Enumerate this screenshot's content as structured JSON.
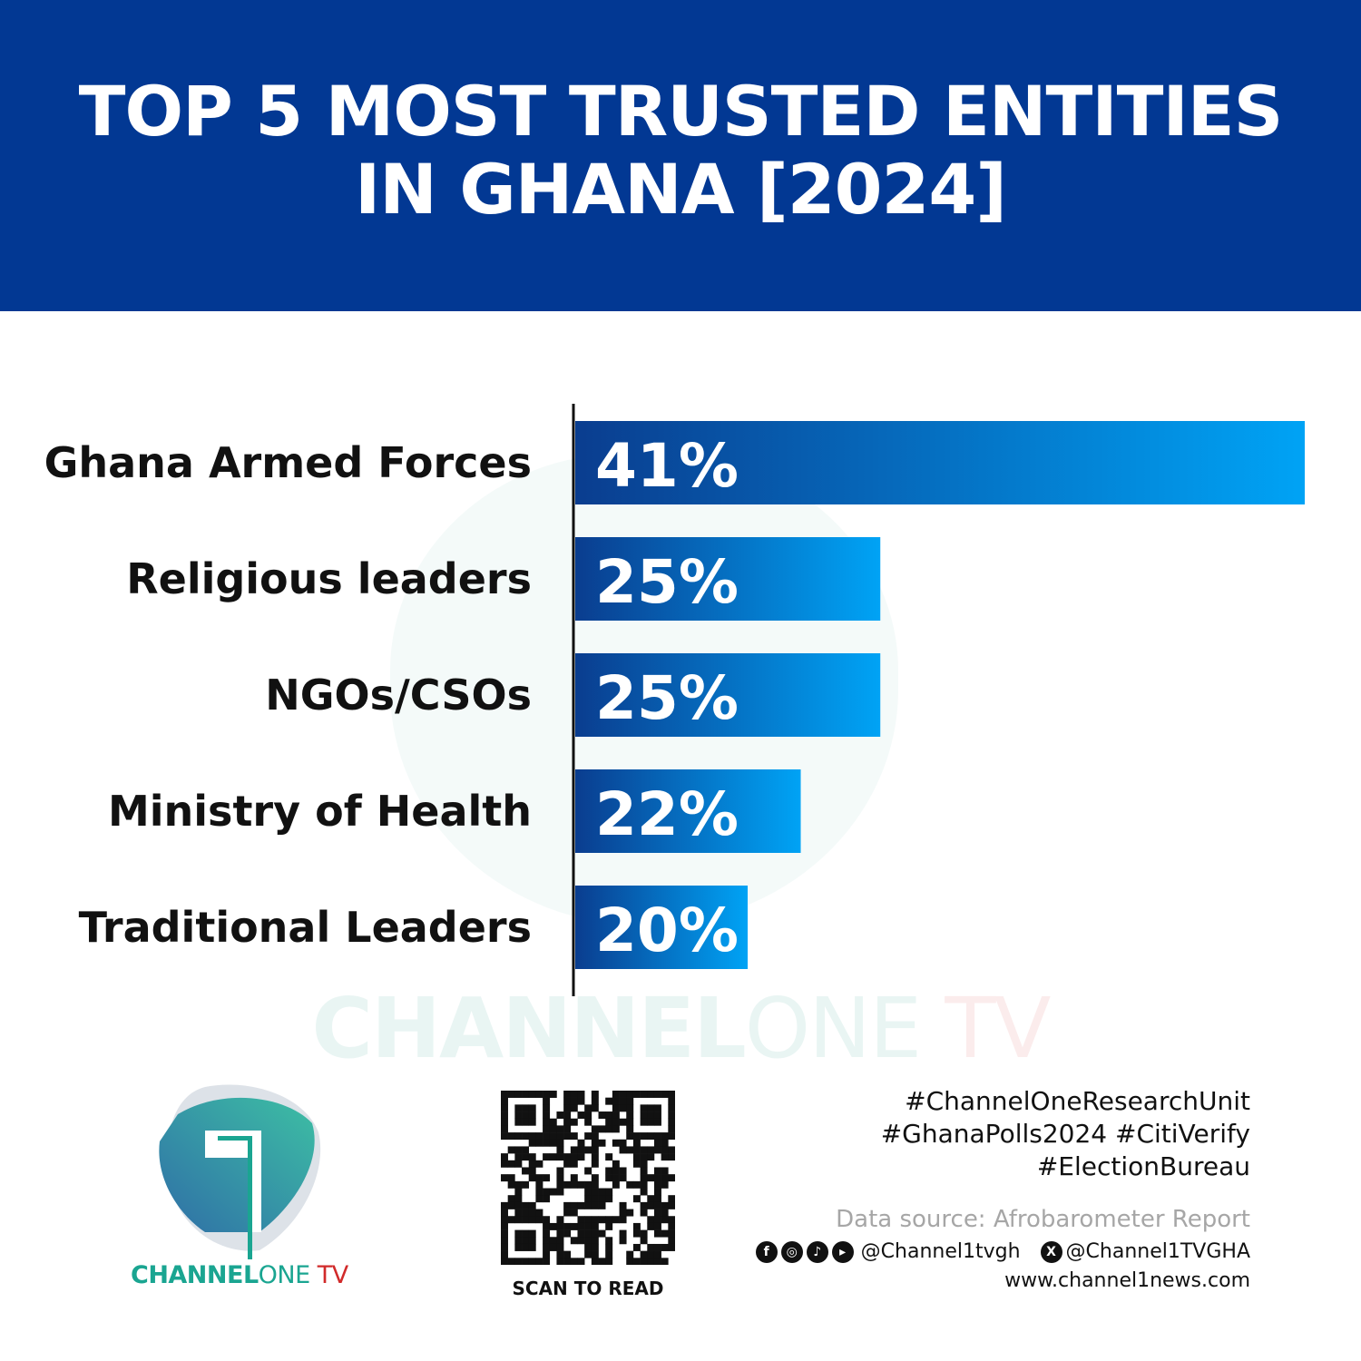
{
  "title_lines": [
    "TOP 5 MOST TRUSTED ENTITIES",
    "IN GHANA [2024]"
  ],
  "colors": {
    "header": "#023893",
    "bar_start": "#0a3d8f",
    "bar_end": "#00a3f5",
    "axis": "#111111"
  },
  "chart_data": {
    "type": "bar",
    "orientation": "horizontal",
    "title": "TOP 5 MOST TRUSTED ENTITIES IN GHANA [2024]",
    "categories": [
      "Ghana Armed Forces",
      "Religious leaders",
      "NGOs/CSOs",
      "Ministry of Health",
      "Traditional Leaders"
    ],
    "values": [
      41,
      25,
      25,
      22,
      20
    ],
    "labels": [
      "41%",
      "25%",
      "25%",
      "22%",
      "20%"
    ],
    "unit": "%",
    "xlim": [
      13.5,
      41
    ],
    "grid": false
  },
  "watermark": {
    "bold": "CHANNEL",
    "light": "ONE",
    "tv": " TV"
  },
  "logo": {
    "bold": "CHANNEL",
    "light": "ONE",
    "tv": " TV"
  },
  "qr": {
    "label": "SCAN TO READ"
  },
  "footer": {
    "tags": [
      "#ChannelOneResearchUnit",
      "#GhanaPolls2024 #CitiVerify",
      "#ElectionBureau"
    ],
    "source": "Data source: Afrobarometer Report",
    "social_icons": [
      "facebook-icon",
      "instagram-icon",
      "tiktok-icon",
      "youtube-icon"
    ],
    "handle1": "@Channel1tvgh",
    "x_icon": "x-icon",
    "handle2": "@Channel1TVGHA",
    "website": "www.channel1news.com"
  }
}
